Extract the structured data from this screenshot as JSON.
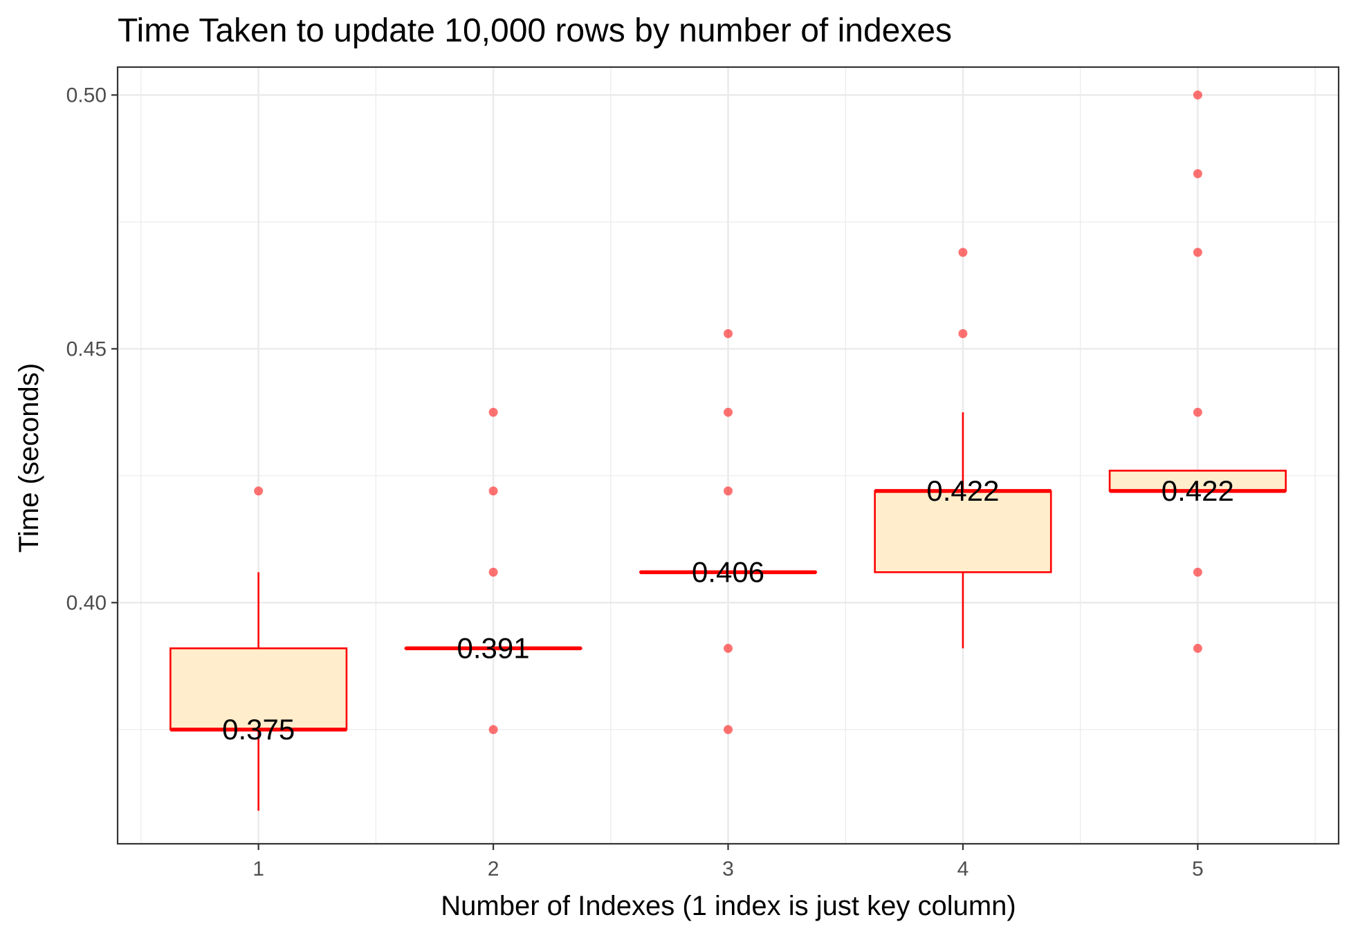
{
  "chart_data": {
    "type": "box",
    "title": "Time Taken to update 10,000 rows by number of indexes",
    "xlabel": "Number of Indexes (1 index is just key column)",
    "ylabel": "Time (seconds)",
    "categories": [
      "1",
      "2",
      "3",
      "4",
      "5"
    ],
    "ylim": [
      0.3525,
      0.5055
    ],
    "y_ticks": [
      0.4,
      0.45,
      0.5
    ],
    "y_tick_labels": [
      "0.40",
      "0.45",
      "0.50"
    ],
    "grid": true,
    "boxes": [
      {
        "category": "1",
        "lower_whisker": 0.359,
        "q1": 0.375,
        "median": 0.375,
        "q3": 0.391,
        "upper_whisker": 0.406,
        "median_label": "0.375"
      },
      {
        "category": "2",
        "lower_whisker": 0.391,
        "q1": 0.391,
        "median": 0.391,
        "q3": 0.391,
        "upper_whisker": 0.391,
        "median_label": "0.391"
      },
      {
        "category": "3",
        "lower_whisker": 0.406,
        "q1": 0.406,
        "median": 0.406,
        "q3": 0.406,
        "upper_whisker": 0.406,
        "median_label": "0.406"
      },
      {
        "category": "4",
        "lower_whisker": 0.391,
        "q1": 0.406,
        "median": 0.422,
        "q3": 0.422,
        "upper_whisker": 0.4375,
        "median_label": "0.422"
      },
      {
        "category": "5",
        "lower_whisker": 0.422,
        "q1": 0.422,
        "median": 0.422,
        "q3": 0.426,
        "upper_whisker": 0.426,
        "median_label": "0.422"
      }
    ],
    "outliers": [
      {
        "category": "1",
        "values": [
          0.422
        ]
      },
      {
        "category": "2",
        "values": [
          0.375,
          0.406,
          0.422,
          0.4375
        ]
      },
      {
        "category": "3",
        "values": [
          0.375,
          0.391,
          0.422,
          0.4375,
          0.453
        ]
      },
      {
        "category": "4",
        "values": [
          0.453,
          0.469
        ]
      },
      {
        "category": "5",
        "values": [
          0.391,
          0.406,
          0.4375,
          0.469,
          0.4845,
          0.5
        ]
      }
    ],
    "colors": {
      "box_fill": "#ffedcc",
      "box_stroke": "#ff0000",
      "point": "#ff0000",
      "grid": "#ebebeb",
      "panel_border": "#333333"
    }
  }
}
